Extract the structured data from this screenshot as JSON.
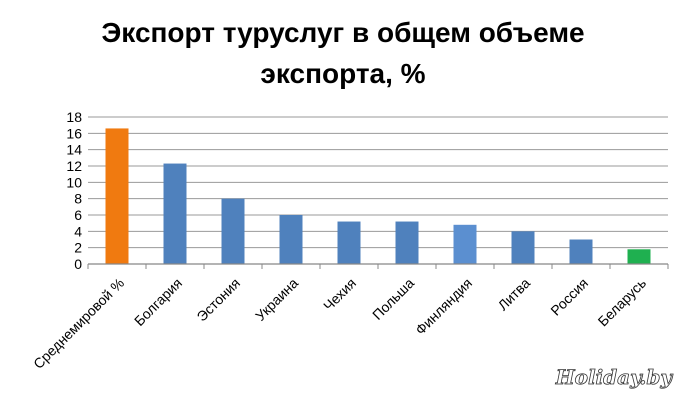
{
  "chart_data": {
    "type": "bar",
    "title_line1": "Экспорт туруслуг в общем объеме",
    "title_line2": "экспорта, %",
    "categories": [
      "Среднемировой %",
      "Болгария",
      "Эстония",
      "Украина",
      "Чехия",
      "Польша",
      "Финляндия",
      "Литва",
      "Россия",
      "Беларусь"
    ],
    "values": [
      16.6,
      12.3,
      8.0,
      6.0,
      5.2,
      5.2,
      4.8,
      4.0,
      3.0,
      1.8
    ],
    "bar_colors": [
      "#f07a10",
      "#4f81bd",
      "#4f81bd",
      "#4f81bd",
      "#4f81bd",
      "#4f81bd",
      "#5b8fd0",
      "#4f81bd",
      "#4f81bd",
      "#1fb050"
    ],
    "ylim": [
      0,
      18
    ],
    "yticks": [
      0,
      2,
      4,
      6,
      8,
      10,
      12,
      14,
      16,
      18
    ],
    "grid": true,
    "legend": "none"
  },
  "watermark": "Holiday.by",
  "colors": {
    "gridline": "#999999",
    "axis": "#888888"
  }
}
